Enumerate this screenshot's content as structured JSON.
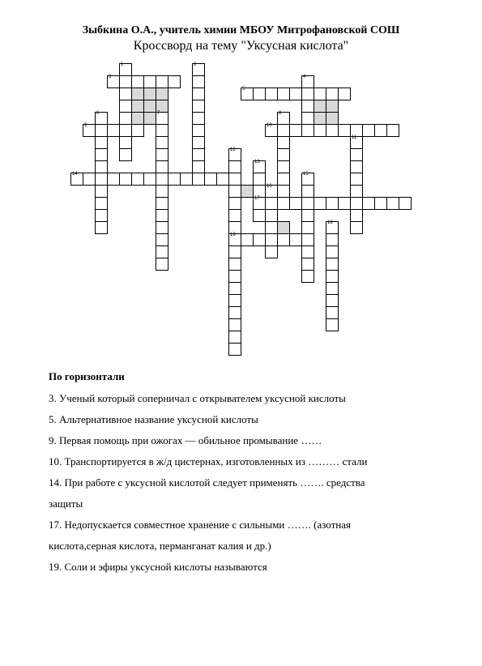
{
  "header": {
    "author": "Зыбкина О.А., учитель химии МБОУ Митрофановской СОШ",
    "title": "Кроссворд на тему \"Уксусная кислота\""
  },
  "crossword": {
    "cellSize": 14,
    "cols": 28,
    "rows": 25,
    "cellBorder": "#000000",
    "cellBg": "#ffffff",
    "shadedBg": "#d9d9d9"
  },
  "clues": {
    "across_title": "По горизонтали",
    "items": [
      "3. Ученый который соперничал с открывателем уксусной кислоты",
      "5. Альтернативное название уксусной кислоты",
      "9. Первая помощь при ожогах — обильное промывание ……",
      "10. Транспортируется в ж/д цистернах, изготовленных из ……… стали",
      "14. При работе с уксусной кислотой следует применять ……. средства",
      "защиты",
      "17. Недопускается совместное хранение с сильными ……. (азотная",
      "кислота,серная кислота, перманганат калия и др.)",
      "19. Соли и эфиры уксусной кислоты называются"
    ]
  }
}
